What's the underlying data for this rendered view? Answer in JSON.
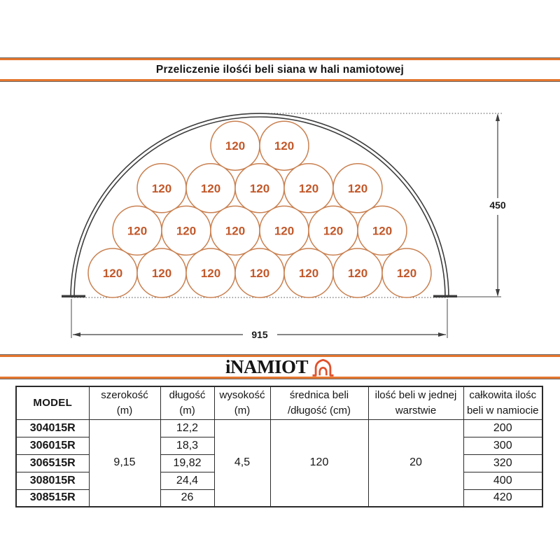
{
  "title": "Przeliczenie ilośći beli siana w hali namiotowej",
  "brand": {
    "name": "iNAMIOT"
  },
  "diagram": {
    "bale_label": "120",
    "bale_rows_top_to_bottom": [
      2,
      5,
      6,
      7
    ],
    "total_bales_in_layer": 20,
    "height_label": "450",
    "width_label": "915"
  },
  "table": {
    "headers": [
      "MODEL",
      "szerokość\n(m)",
      "długość\n(m)",
      "wysokość\n(m)",
      "średnica beli\n/długość (cm)",
      "ilość beli w jednej\nwarstwie",
      "całkowita ilośc\nbeli w namiocie"
    ],
    "shared": {
      "szerokosc": "9,15",
      "wysokosc": "4,5",
      "srednica": "120",
      "ilosc_w_warstwie": "20"
    },
    "rows": [
      {
        "model": "304015R",
        "dlugosc": "12,2",
        "total": "200"
      },
      {
        "model": "306015R",
        "dlugosc": "18,3",
        "total": "300"
      },
      {
        "model": "306515R",
        "dlugosc": "19,82",
        "total": "320"
      },
      {
        "model": "308015R",
        "dlugosc": "24,4",
        "total": "400"
      },
      {
        "model": "308515R",
        "dlugosc": "26",
        "total": "420"
      }
    ]
  },
  "colors": {
    "accent_orange": "#e4762e",
    "bale_stroke": "#c98050",
    "bale_text": "#c2582a",
    "frame_gray": "#3d3d3d",
    "logo_red": "#e0512c"
  }
}
